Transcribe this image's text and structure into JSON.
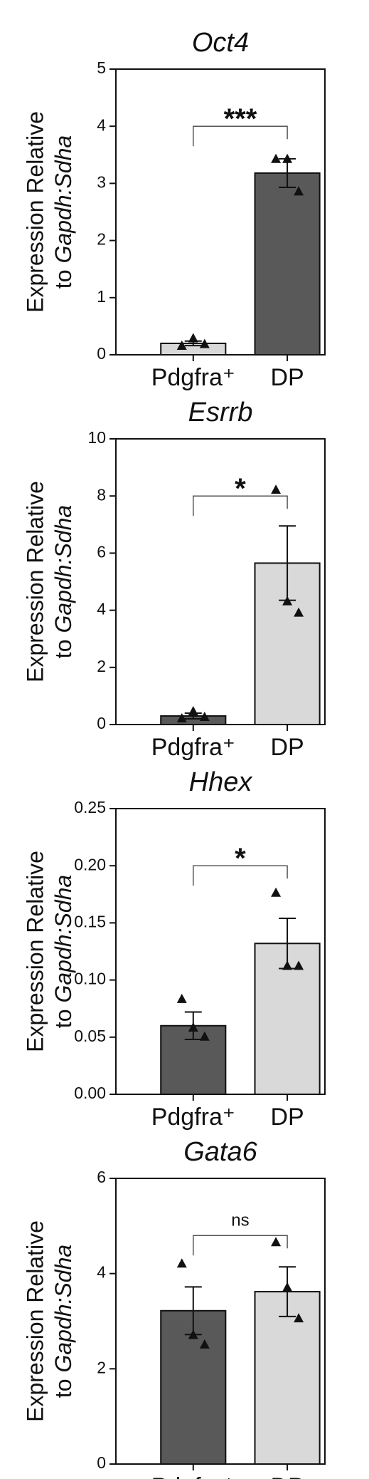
{
  "chart_data": [
    {
      "type": "bar",
      "title": "Oct4",
      "ylabel_line1": "Expression Relative",
      "ylabel_prefix": "to",
      "ylabel_italic": "Gapdh:Sdha",
      "categories": [
        "Pdgfra⁺",
        "DP"
      ],
      "values": [
        0.2,
        3.18
      ],
      "errors": [
        0.04,
        0.25
      ],
      "colors": [
        "#d9d9d9",
        "#595959"
      ],
      "points": [
        [
          0.15,
          0.28,
          0.18
        ],
        [
          3.42,
          3.42,
          2.85
        ]
      ],
      "significance": "***",
      "ylim": [
        0,
        5
      ],
      "yticks": [
        0,
        1,
        2,
        3,
        4,
        5
      ]
    },
    {
      "type": "bar",
      "title": "Esrrb",
      "ylabel_line1": "Expression Relative",
      "ylabel_prefix": "to",
      "ylabel_italic": "Gapdh:Sdha",
      "categories": [
        "Pdgfra⁺",
        "DP"
      ],
      "values": [
        0.3,
        5.65
      ],
      "errors": [
        0.1,
        1.3
      ],
      "colors": [
        "#595959",
        "#d9d9d9"
      ],
      "points": [
        [
          0.2,
          0.45,
          0.25
        ],
        [
          8.2,
          4.3,
          3.9
        ]
      ],
      "significance": "*",
      "ylim": [
        0,
        10
      ],
      "yticks": [
        0,
        2,
        4,
        6,
        8,
        10
      ]
    },
    {
      "type": "bar",
      "title": "Hhex",
      "ylabel_line1": "Expression Relative",
      "ylabel_prefix": "to",
      "ylabel_italic": "Gapdh:Sdha",
      "categories": [
        "Pdgfra⁺",
        "DP"
      ],
      "values": [
        0.06,
        0.132
      ],
      "errors": [
        0.012,
        0.022
      ],
      "colors": [
        "#595959",
        "#d9d9d9"
      ],
      "points": [
        [
          0.083,
          0.058,
          0.05
        ],
        [
          0.176,
          0.112,
          0.112
        ]
      ],
      "significance": "*",
      "ylim": [
        0,
        0.25
      ],
      "yticks": [
        {
          "value": 0,
          "label": "0.00"
        },
        0.05,
        {
          "value": 0.1,
          "label": "0.10"
        },
        0.15,
        {
          "value": 0.2,
          "label": "0.20"
        },
        0.25
      ]
    },
    {
      "type": "bar",
      "title": "Gata6",
      "ylabel_line1": "Expression Relative",
      "ylabel_prefix": "to",
      "ylabel_italic": "Gapdh:Sdha",
      "categories": [
        "Pdgfra⁺",
        "DP"
      ],
      "values": [
        3.22,
        3.62
      ],
      "errors": [
        0.5,
        0.52
      ],
      "colors": [
        "#595959",
        "#d9d9d9"
      ],
      "points": [
        [
          4.2,
          2.7,
          2.5
        ],
        [
          4.65,
          3.7,
          3.05
        ]
      ],
      "significance": "ns",
      "ylim": [
        0,
        6
      ],
      "yticks": [
        0,
        2,
        4,
        6
      ]
    }
  ]
}
